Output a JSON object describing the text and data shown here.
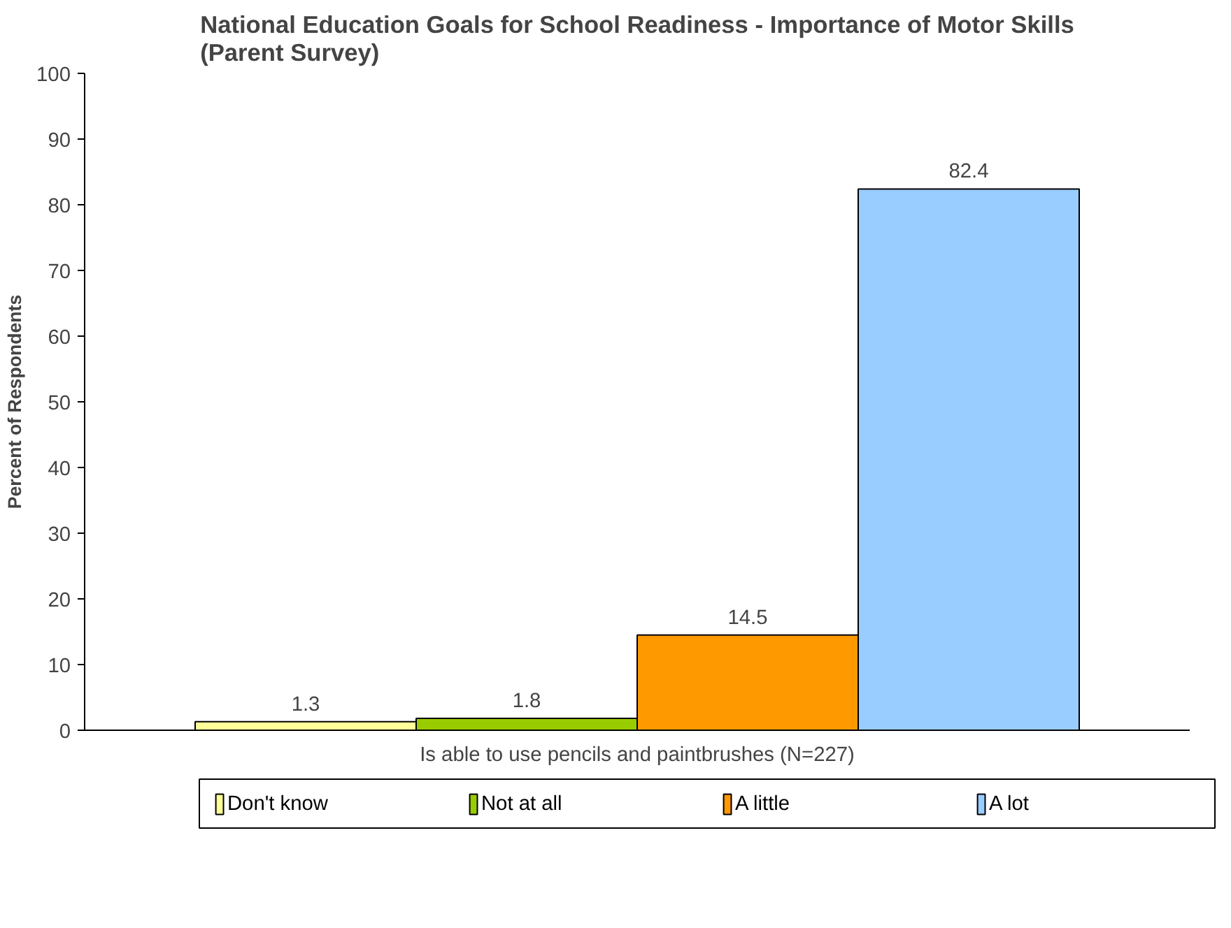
{
  "chart_data": {
    "type": "bar",
    "title": "National Education Goals for School Readiness - Importance of Motor Skills\n(Parent Survey)",
    "ylabel": "Percent of Respondents",
    "categories": [
      "Is able to use pencils and paintbrushes (N=227)"
    ],
    "series": [
      {
        "name": "Don't know",
        "color": "#ffff99",
        "values": [
          1.3
        ]
      },
      {
        "name": "Not at all",
        "color": "#99cc00",
        "values": [
          1.8
        ]
      },
      {
        "name": "A little",
        "color": "#ff9900",
        "values": [
          14.5
        ]
      },
      {
        "name": "A lot",
        "color": "#99ccff",
        "values": [
          82.4
        ]
      }
    ],
    "ylim": [
      0,
      100
    ],
    "yticks": [
      0,
      10,
      20,
      30,
      40,
      50,
      60,
      70,
      80,
      90,
      100
    ],
    "data_labels": true,
    "grid": false,
    "legend": "bottom"
  }
}
